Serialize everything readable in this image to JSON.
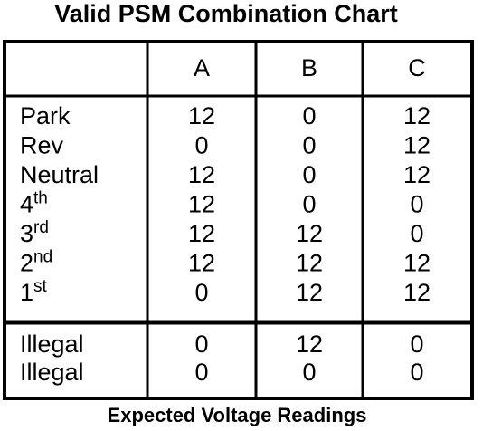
{
  "title": "Valid PSM Combination Chart",
  "table": {
    "headers": [
      "A",
      "B",
      "C"
    ],
    "rows": [
      {
        "label": "Park",
        "values": [
          12,
          0,
          12
        ]
      },
      {
        "label": "Rev",
        "values": [
          0,
          0,
          12
        ]
      },
      {
        "label": "Neutral",
        "values": [
          12,
          0,
          12
        ]
      },
      {
        "label": "4",
        "sup": "th",
        "values": [
          12,
          0,
          0
        ]
      },
      {
        "label": "3",
        "sup": "rd",
        "values": [
          12,
          12,
          0
        ]
      },
      {
        "label": "2",
        "sup": "nd",
        "values": [
          12,
          12,
          12
        ]
      },
      {
        "label": "1",
        "sup": "st",
        "values": [
          0,
          12,
          12
        ]
      }
    ],
    "illegal_rows": [
      {
        "label": "Illegal",
        "values": [
          0,
          12,
          0
        ]
      },
      {
        "label": "Illegal",
        "values": [
          0,
          0,
          0
        ]
      }
    ]
  },
  "footer": "Expected Voltage Readings"
}
